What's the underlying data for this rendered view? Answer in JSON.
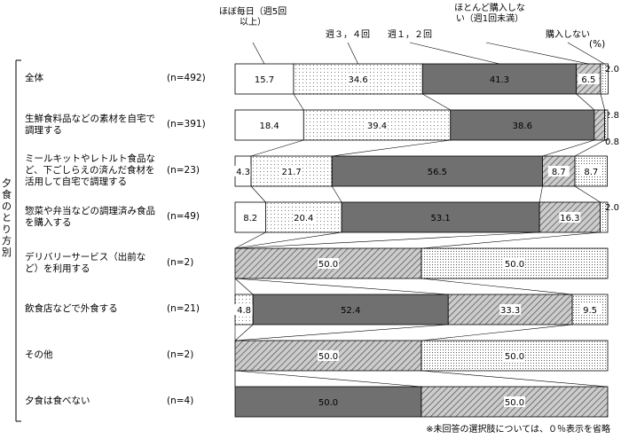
{
  "chart_data": {
    "type": "stacked_bar_100",
    "group_label": "夕食のとり方別",
    "unit_label": "(%)",
    "footnote": "※未回答の選択肢については、０％表示を省略",
    "categories": [
      "全体",
      "生鮮食料品などの素材を自宅で調理する",
      "ミールキットやレトルト食品など、下ごしらえの済んだ食材を活用して自宅で調理する",
      "惣菜や弁当などの調理済み食品を購入する",
      "デリバリーサービス（出前など）を利用する",
      "飲食店などで外食する",
      "その他",
      "夕食は食べない"
    ],
    "n_labels": [
      "(n=492)",
      "(n=391)",
      "(n=23)",
      "(n=49)",
      "(n=2)",
      "(n=21)",
      "(n=2)",
      "(n=4)"
    ],
    "xlim": [
      0,
      100
    ],
    "series": [
      {
        "name": "ほぼ毎日（週5回以上）",
        "color": "#ffffff",
        "values": [
          15.7,
          18.4,
          4.3,
          8.2,
          null,
          null,
          null,
          null
        ],
        "value_labels": [
          "15.7",
          "18.4",
          "4.3",
          "8.2",
          null,
          null,
          null,
          null
        ]
      },
      {
        "name": "週３，４回",
        "color": "dots-light",
        "values": [
          34.6,
          39.4,
          21.7,
          20.4,
          null,
          4.8,
          null,
          null
        ],
        "value_labels": [
          "34.6",
          "39.4",
          "21.7",
          "20.4",
          null,
          "4.8",
          null,
          null
        ]
      },
      {
        "name": "週１，２回",
        "color": "#707070",
        "values": [
          41.3,
          38.6,
          56.5,
          53.1,
          null,
          52.4,
          null,
          50
        ],
        "value_labels": [
          "41.3",
          "38.6",
          "56.5",
          "53.1",
          null,
          "52.4",
          null,
          "50.0"
        ]
      },
      {
        "name": "ほとんど購入しない（週1回未満）",
        "color": "hatch",
        "values": [
          6.5,
          2.8,
          8.7,
          16.3,
          50,
          33.3,
          50,
          50
        ],
        "value_labels": [
          "6.5",
          "2.8",
          "8.7",
          "16.3",
          "50.0",
          "33.3",
          "50.0",
          "50.0"
        ]
      },
      {
        "name": "購入しない",
        "color": "dots-dense",
        "values": [
          2,
          0.8,
          8.7,
          2,
          50,
          9.5,
          50,
          null
        ],
        "value_labels": [
          "2.0",
          "0.8",
          "8.7",
          "2.0",
          "50.0",
          "9.5",
          "50.0",
          null
        ]
      }
    ]
  }
}
